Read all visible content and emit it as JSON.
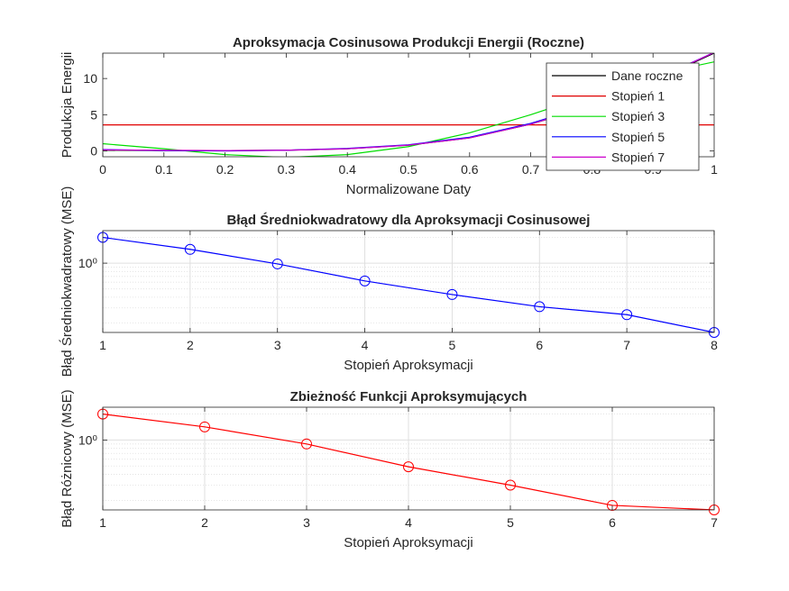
{
  "figure": {
    "background": "#ffffff",
    "axes_color": "#262626",
    "grid_color": "#dfdfdf"
  },
  "chart_data": [
    {
      "id": "panel1",
      "type": "line",
      "title": "Aproksymacja Cosinusowa Produkcji Energii (Roczne)",
      "xlabel": "Normalizowane Daty",
      "ylabel": "Produkcja Energii",
      "xlim": [
        0,
        1
      ],
      "ylim": [
        -0.8,
        13.5
      ],
      "xticks": [
        0,
        0.1,
        0.2,
        0.3,
        0.4,
        0.5,
        0.6,
        0.7,
        0.8,
        0.9,
        1
      ],
      "yticks": [
        0,
        5,
        10
      ],
      "grid": false,
      "legend_position": "top-right",
      "series": [
        {
          "name": "Dane roczne",
          "color": "#000000",
          "x": [
            0,
            0.1,
            0.2,
            0.3,
            0.4,
            0.5,
            0.6,
            0.7,
            0.8,
            0.9,
            1.0
          ],
          "y": [
            0.1,
            0.05,
            0.05,
            0.1,
            0.3,
            0.8,
            1.8,
            3.7,
            6.2,
            9.6,
            13.5
          ]
        },
        {
          "name": "Stopień 1",
          "color": "#e00000",
          "x": [
            0,
            1
          ],
          "y": [
            3.6,
            3.6
          ]
        },
        {
          "name": "Stopień 3",
          "color": "#00dd00",
          "x": [
            0,
            0.1,
            0.2,
            0.3,
            0.4,
            0.5,
            0.6,
            0.7,
            0.8,
            0.9,
            1.0
          ],
          "y": [
            1.0,
            0.3,
            -0.5,
            -0.9,
            -0.5,
            0.6,
            2.5,
            5.0,
            7.8,
            10.5,
            12.3
          ]
        },
        {
          "name": "Stopień 5",
          "color": "#0000ff",
          "x": [
            0,
            0.1,
            0.2,
            0.3,
            0.4,
            0.5,
            0.6,
            0.7,
            0.8,
            0.9,
            1.0
          ],
          "y": [
            0.2,
            0.05,
            0.0,
            0.1,
            0.35,
            0.85,
            1.9,
            3.8,
            6.4,
            9.8,
            13.6
          ]
        },
        {
          "name": "Stopień 7",
          "color": "#cc00cc",
          "x": [
            0,
            0.1,
            0.2,
            0.3,
            0.4,
            0.5,
            0.6,
            0.7,
            0.8,
            0.9,
            1.0
          ],
          "y": [
            0.15,
            0.1,
            0.05,
            0.1,
            0.3,
            0.8,
            1.8,
            3.7,
            6.3,
            9.7,
            13.6
          ]
        }
      ]
    },
    {
      "id": "panel2",
      "type": "line",
      "title": "Błąd Średniokwadratowy dla Aproksymacji Cosinusowej",
      "xlabel": "Stopień Aproksymacji",
      "ylabel": "Błąd Średniokwadratowy (MSE)",
      "xlim": [
        1,
        8
      ],
      "ylim": [
        0.155,
        2.4
      ],
      "yscale": "log",
      "xticks": [
        1,
        2,
        3,
        4,
        5,
        6,
        7,
        8
      ],
      "yticks": [
        1
      ],
      "ytick_labels": [
        "10⁰"
      ],
      "grid": true,
      "series": [
        {
          "name": "",
          "color": "#0000ff",
          "marker": "circle",
          "x": [
            1,
            2,
            3,
            4,
            5,
            6,
            7,
            8
          ],
          "y": [
            2.0,
            1.45,
            0.98,
            0.62,
            0.43,
            0.31,
            0.25,
            0.155
          ]
        }
      ]
    },
    {
      "id": "panel3",
      "type": "line",
      "title": "Zbieżność Funkcji Aproksymujących",
      "xlabel": "Stopień Aproksymacji",
      "ylabel": "Błąd Różnicowy (MSE)",
      "xlim": [
        1,
        7
      ],
      "ylim": [
        0.155,
        2.4
      ],
      "yscale": "log",
      "xticks": [
        1,
        2,
        3,
        4,
        5,
        6,
        7
      ],
      "yticks": [
        1
      ],
      "ytick_labels": [
        "10⁰"
      ],
      "grid": true,
      "series": [
        {
          "name": "",
          "color": "#ff0000",
          "marker": "circle",
          "x": [
            1,
            2,
            3,
            4,
            5,
            6,
            7
          ],
          "y": [
            2.0,
            1.42,
            0.9,
            0.49,
            0.3,
            0.175,
            0.155
          ]
        }
      ]
    }
  ]
}
